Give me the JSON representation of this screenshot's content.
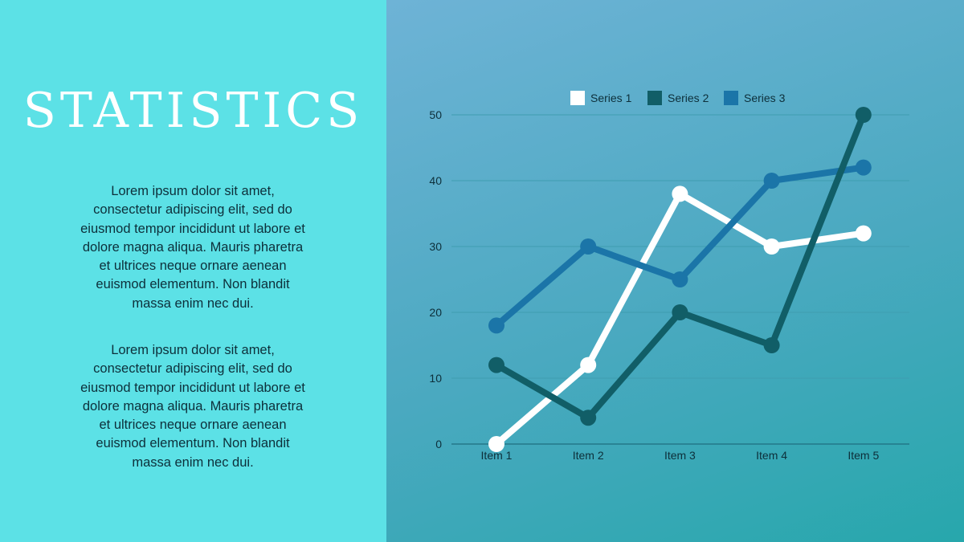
{
  "slide": {
    "title": "STATISTICS",
    "paragraphs": [
      "Lorem ipsum dolor sit amet, consectetur adipiscing elit, sed do eiusmod tempor incididunt ut labore et dolore magna aliqua. Mauris pharetra et ultrices neque ornare aenean euismod elementum. Non blandit massa enim nec dui.",
      "Lorem ipsum dolor sit amet, consectetur adipiscing elit, sed do eiusmod tempor incididunt ut labore et dolore magna aliqua. Mauris pharetra et ultrices neque ornare aenean euismod elementum. Non blandit massa enim nec dui."
    ]
  },
  "colors": {
    "left_panel": "#5ce1e6",
    "series_1": "#ffffff",
    "series_2": "#115e67",
    "series_3": "#1b75a8",
    "gridline": "#3f9db0",
    "axis": "#1f6f80"
  },
  "chart_data": {
    "type": "line",
    "categories": [
      "Item 1",
      "Item 2",
      "Item 3",
      "Item 4",
      "Item 5"
    ],
    "series": [
      {
        "name": "Series 1",
        "values": [
          0,
          12,
          38,
          30,
          32
        ]
      },
      {
        "name": "Series 2",
        "values": [
          12,
          4,
          20,
          15,
          50
        ]
      },
      {
        "name": "Series 3",
        "values": [
          18,
          30,
          25,
          40,
          42
        ]
      }
    ],
    "yticks": [
      0,
      10,
      20,
      30,
      40,
      50
    ],
    "ylim": [
      0,
      50
    ],
    "grid": true,
    "legend_position": "top-center"
  }
}
